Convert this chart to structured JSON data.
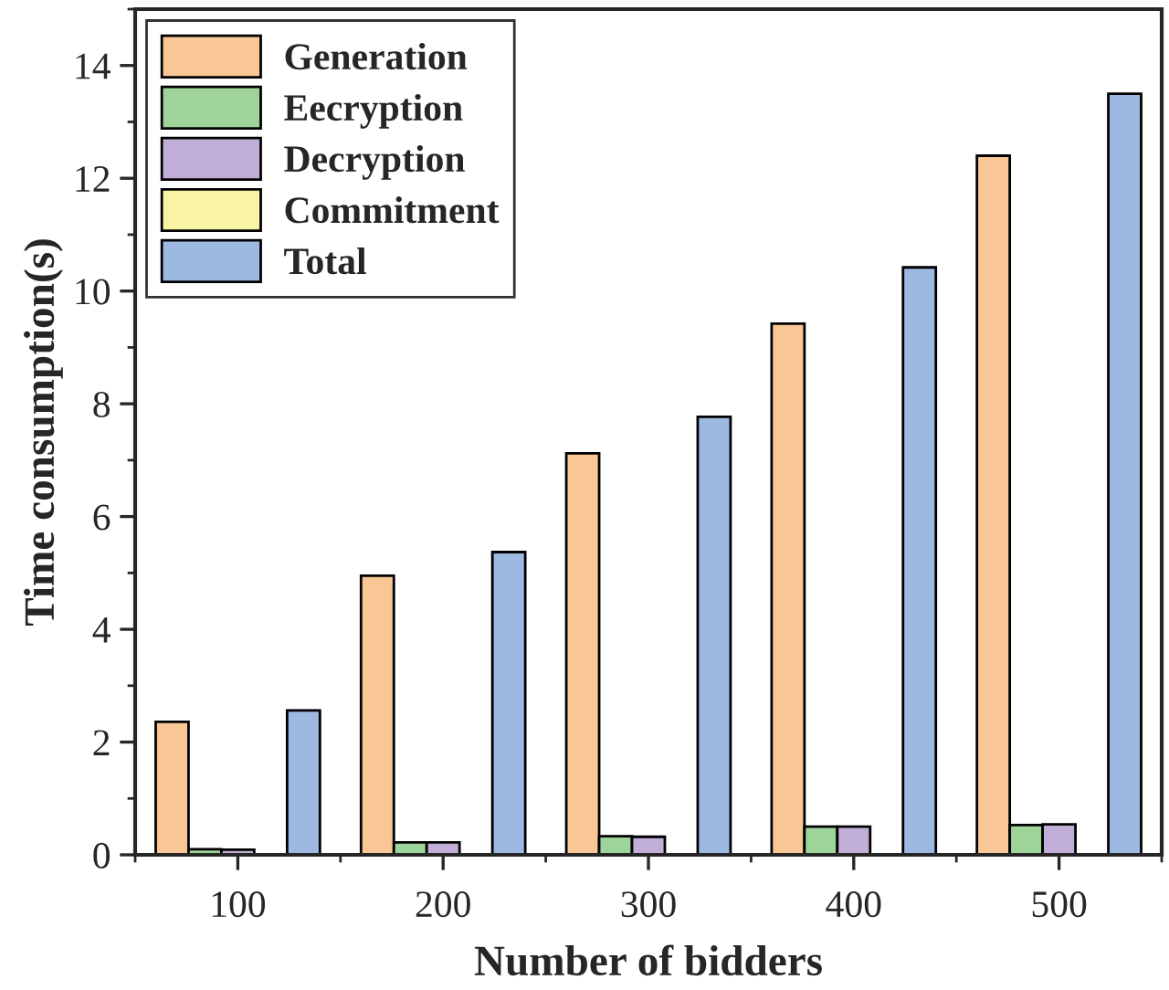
{
  "chart_data": {
    "type": "bar",
    "xlabel": "Number of bidders",
    "ylabel": "Time consumption(s)",
    "categories": [
      "100",
      "200",
      "300",
      "400",
      "500"
    ],
    "series": [
      {
        "name": "Generation",
        "color": "#f9c795",
        "values": [
          2.36,
          4.95,
          7.12,
          9.42,
          12.4
        ]
      },
      {
        "name": "Eecryption",
        "color": "#9ed39a",
        "values": [
          0.1,
          0.22,
          0.33,
          0.5,
          0.53
        ]
      },
      {
        "name": "Decryption",
        "color": "#c0aed6",
        "values": [
          0.09,
          0.22,
          0.32,
          0.5,
          0.54
        ]
      },
      {
        "name": "Commitment",
        "color": "#f9f3a4",
        "values": [
          null,
          null,
          null,
          null,
          null
        ]
      },
      {
        "name": "Total",
        "color": "#9db9e2",
        "values": [
          2.56,
          5.37,
          7.77,
          10.42,
          13.5
        ]
      }
    ],
    "ylim": [
      0,
      15
    ],
    "yticks": [
      0,
      2,
      4,
      6,
      8,
      10,
      12,
      14
    ],
    "grid": false,
    "legend": "top left"
  }
}
